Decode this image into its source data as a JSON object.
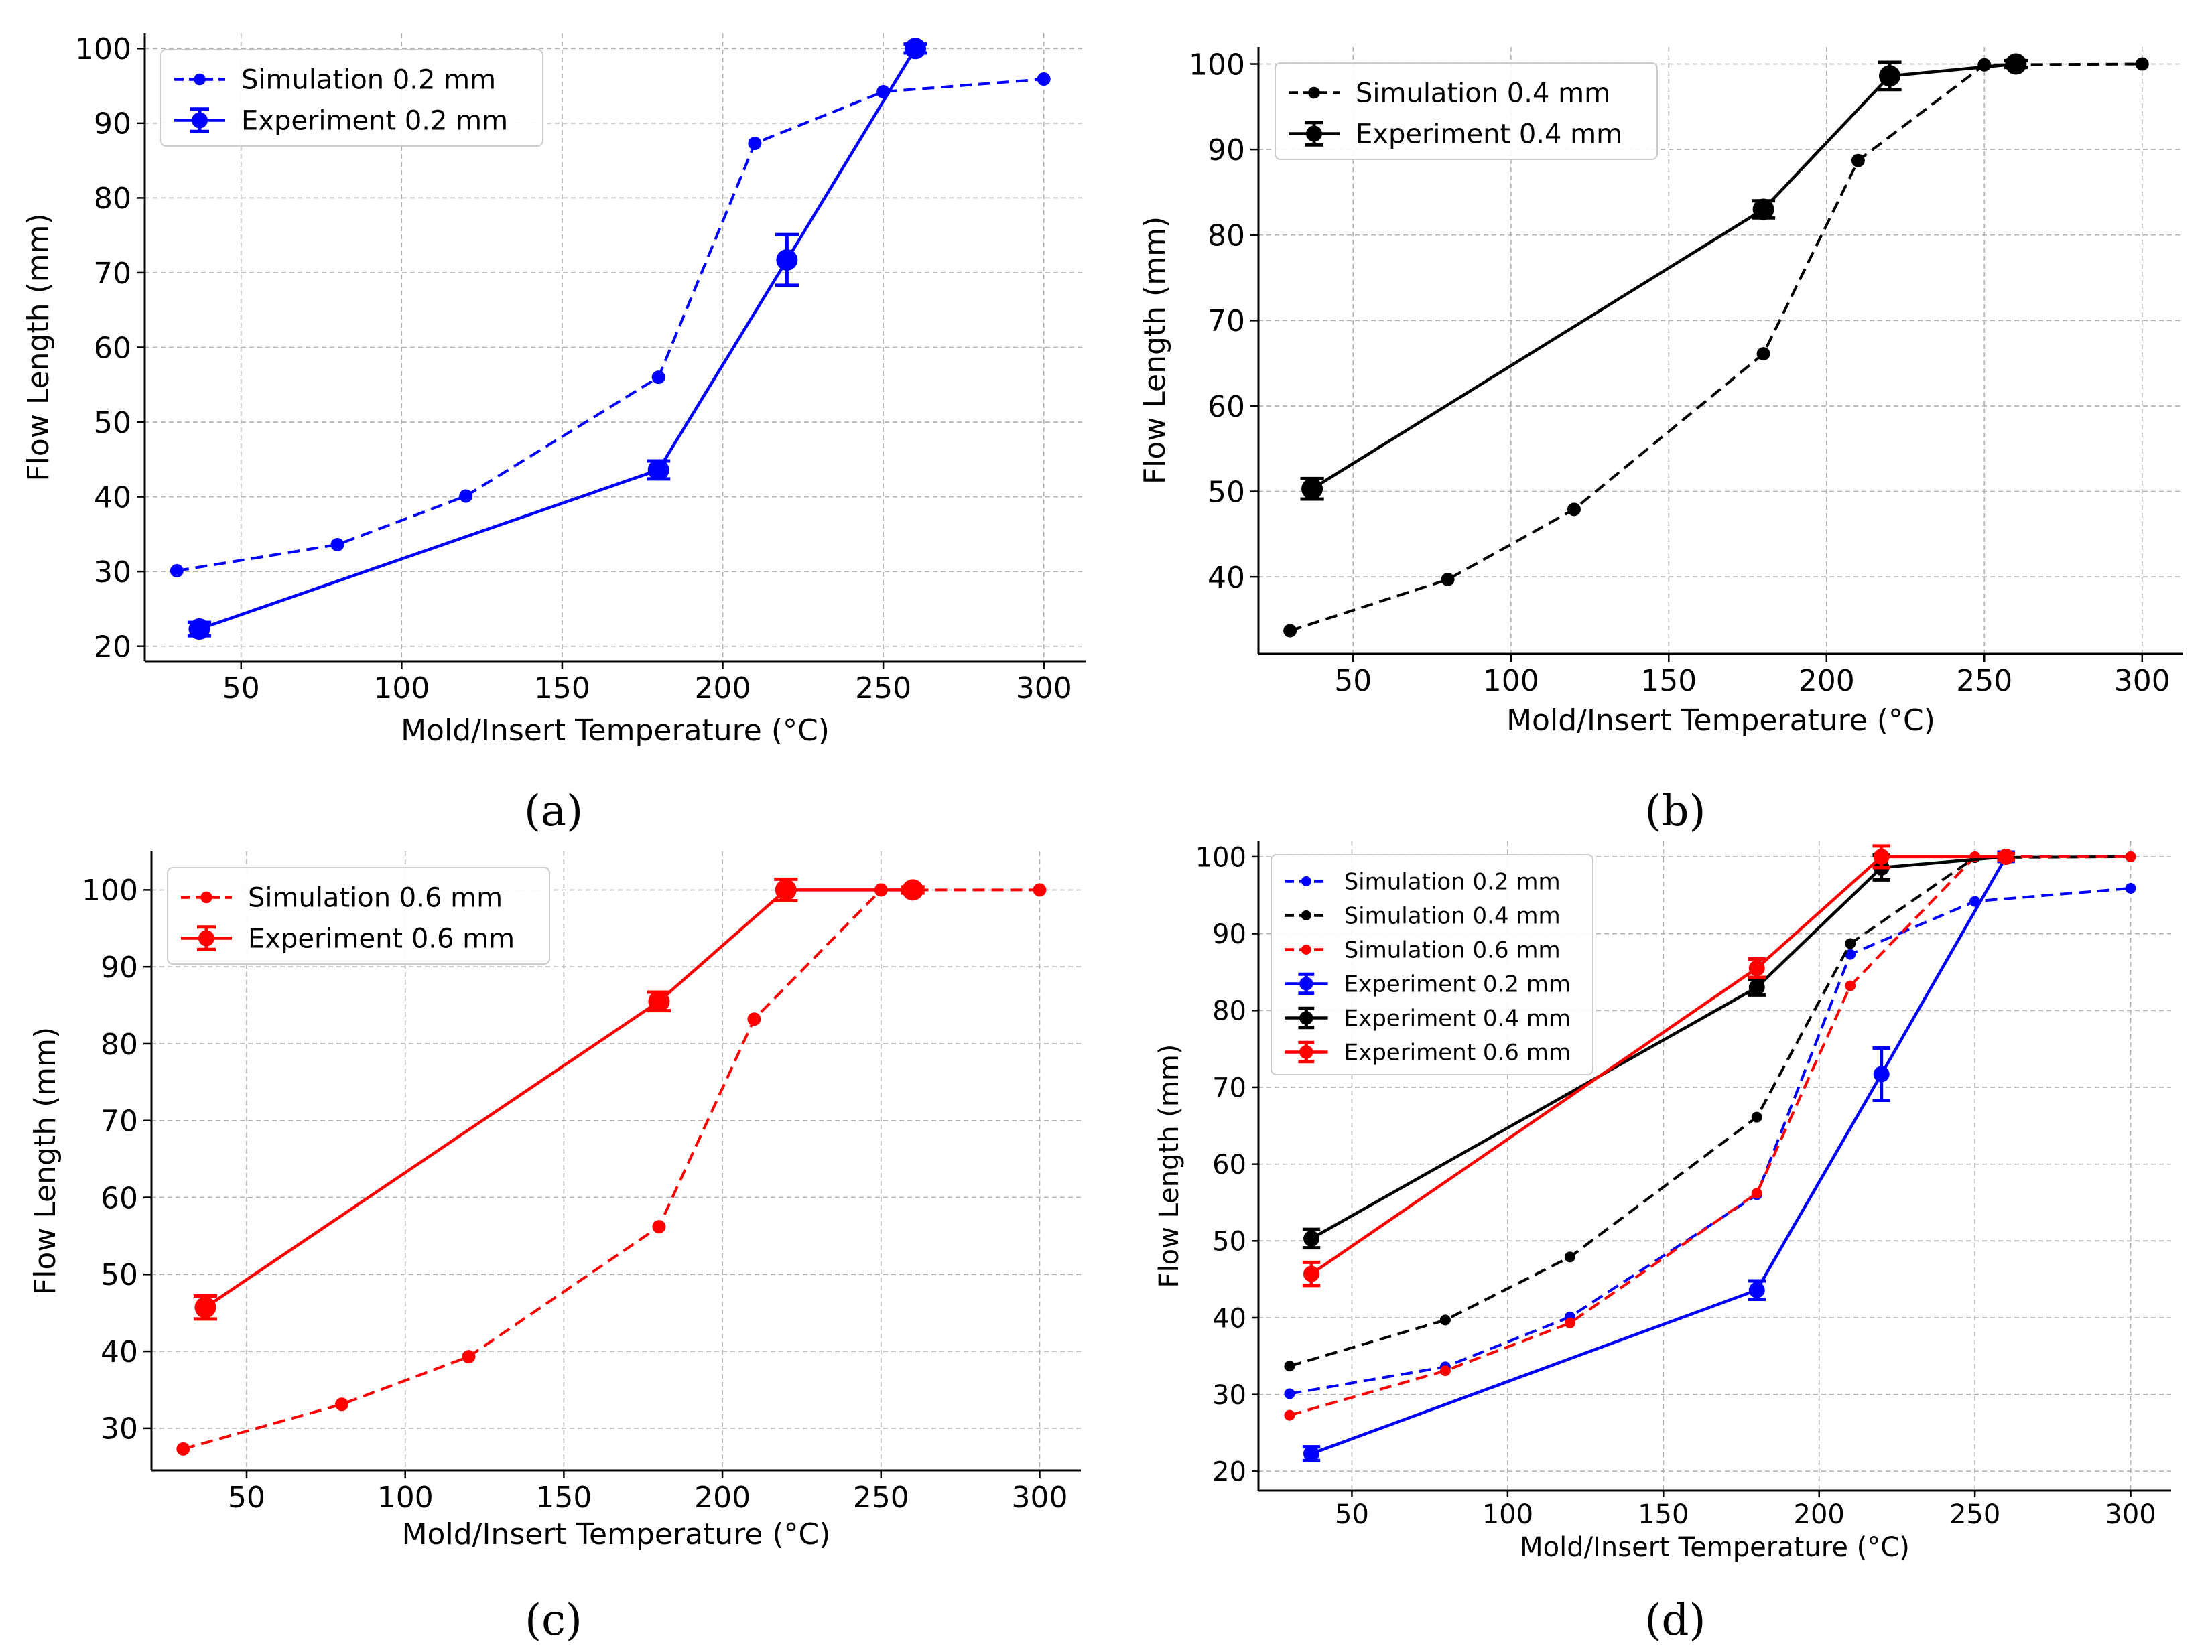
{
  "panel_labels": [
    "(a)",
    "(b)",
    "(c)",
    "(d)"
  ],
  "colors": {
    "blue": "#0000ff",
    "black": "#000000",
    "red": "#ff0000",
    "grid": "#b0b0b0"
  },
  "chart_data": [
    {
      "type": "line",
      "panel": "(a)",
      "xlabel": "Mold/Insert Temperature (°C)",
      "ylabel": "Flow Length (mm)",
      "xlim": [
        20,
        313
      ],
      "ylim": [
        18,
        102
      ],
      "xticks": [
        50,
        100,
        150,
        200,
        250,
        300
      ],
      "yticks": [
        20,
        30,
        40,
        50,
        60,
        70,
        80,
        90,
        100
      ],
      "series": [
        {
          "name": "Simulation 0.2 mm",
          "color": "#0000ff",
          "style": "dashed",
          "marker_size": 5,
          "x": [
            30,
            80,
            120,
            180,
            210,
            250,
            300
          ],
          "y": [
            30.1,
            33.6,
            40.1,
            56.0,
            87.3,
            94.2,
            95.9
          ]
        },
        {
          "name": "Experiment 0.2 mm",
          "color": "#0000ff",
          "style": "solid",
          "marker_size": 8,
          "x": [
            37,
            180,
            220,
            260
          ],
          "y": [
            22.3,
            43.6,
            71.7,
            100.0
          ],
          "err": [
            0.9,
            1.2,
            3.4,
            0.6
          ]
        }
      ]
    },
    {
      "type": "line",
      "panel": "(b)",
      "xlabel": "Mold/Insert Temperature (°C)",
      "ylabel": "Flow Length (mm)",
      "xlim": [
        20,
        313
      ],
      "ylim": [
        31,
        102
      ],
      "xticks": [
        50,
        100,
        150,
        200,
        250,
        300
      ],
      "yticks": [
        40,
        50,
        60,
        70,
        80,
        90,
        100
      ],
      "series": [
        {
          "name": "Simulation 0.4 mm",
          "color": "#000000",
          "style": "dashed",
          "marker_size": 5,
          "x": [
            30,
            80,
            120,
            180,
            210,
            250,
            300
          ],
          "y": [
            33.7,
            39.7,
            47.9,
            66.1,
            88.7,
            99.9,
            100.0
          ]
        },
        {
          "name": "Experiment 0.4 mm",
          "color": "#000000",
          "style": "solid",
          "marker_size": 8,
          "x": [
            37,
            180,
            220,
            260
          ],
          "y": [
            50.3,
            83.0,
            98.6,
            100.0
          ],
          "err": [
            1.2,
            1.0,
            1.6,
            0.4
          ]
        }
      ]
    },
    {
      "type": "line",
      "panel": "(c)",
      "xlabel": "Mold/Insert Temperature (°C)",
      "ylabel": "Flow Length (mm)",
      "xlim": [
        20,
        313
      ],
      "ylim": [
        24.5,
        105
      ],
      "xticks": [
        50,
        100,
        150,
        200,
        250,
        300
      ],
      "yticks": [
        30,
        40,
        50,
        60,
        70,
        80,
        90,
        100
      ],
      "series": [
        {
          "name": "Simulation 0.6 mm",
          "color": "#ff0000",
          "style": "dashed",
          "marker_size": 5,
          "x": [
            30,
            80,
            120,
            180,
            210,
            250,
            300
          ],
          "y": [
            27.3,
            33.1,
            39.3,
            56.2,
            83.2,
            100.0,
            100.0
          ]
        },
        {
          "name": "Experiment 0.6 mm",
          "color": "#ff0000",
          "style": "solid",
          "marker_size": 8,
          "x": [
            37,
            180,
            220,
            260
          ],
          "y": [
            45.7,
            85.5,
            100.0,
            100.0
          ],
          "err": [
            1.5,
            1.2,
            1.4,
            0.4
          ]
        }
      ]
    },
    {
      "type": "line",
      "panel": "(d)",
      "xlabel": "Mold/Insert Temperature (°C)",
      "ylabel": "Flow Length (mm)",
      "xlim": [
        20,
        313
      ],
      "ylim": [
        17.5,
        102
      ],
      "xticks": [
        50,
        100,
        150,
        200,
        250,
        300
      ],
      "yticks": [
        20,
        30,
        40,
        50,
        60,
        70,
        80,
        90,
        100
      ],
      "series": [
        {
          "name": "Simulation 0.2 mm",
          "color": "#0000ff",
          "style": "dashed",
          "marker_size": 4,
          "x": [
            30,
            80,
            120,
            180,
            210,
            250,
            300
          ],
          "y": [
            30.1,
            33.6,
            40.1,
            56.0,
            87.3,
            94.2,
            95.9
          ]
        },
        {
          "name": "Simulation 0.4 mm",
          "color": "#000000",
          "style": "dashed",
          "marker_size": 4,
          "x": [
            30,
            80,
            120,
            180,
            210,
            250,
            300
          ],
          "y": [
            33.7,
            39.7,
            47.9,
            66.1,
            88.7,
            99.9,
            100.0
          ]
        },
        {
          "name": "Simulation 0.6 mm",
          "color": "#ff0000",
          "style": "dashed",
          "marker_size": 4,
          "x": [
            30,
            80,
            120,
            180,
            210,
            250,
            300
          ],
          "y": [
            27.3,
            33.1,
            39.3,
            56.2,
            83.2,
            100.0,
            100.0
          ]
        },
        {
          "name": "Experiment 0.2 mm",
          "color": "#0000ff",
          "style": "solid",
          "marker_size": 6,
          "x": [
            37,
            180,
            220,
            260
          ],
          "y": [
            22.3,
            43.6,
            71.7,
            100.0
          ],
          "err": [
            0.9,
            1.2,
            3.4,
            0.6
          ]
        },
        {
          "name": "Experiment 0.4 mm",
          "color": "#000000",
          "style": "solid",
          "marker_size": 6,
          "x": [
            37,
            180,
            220,
            260
          ],
          "y": [
            50.3,
            83.0,
            98.6,
            100.0
          ],
          "err": [
            1.2,
            1.0,
            1.6,
            0.4
          ]
        },
        {
          "name": "Experiment 0.6 mm",
          "color": "#ff0000",
          "style": "solid",
          "marker_size": 6,
          "x": [
            37,
            180,
            220,
            260
          ],
          "y": [
            45.7,
            85.5,
            100.0,
            100.0
          ],
          "err": [
            1.5,
            1.2,
            1.4,
            0.4
          ]
        }
      ]
    }
  ]
}
